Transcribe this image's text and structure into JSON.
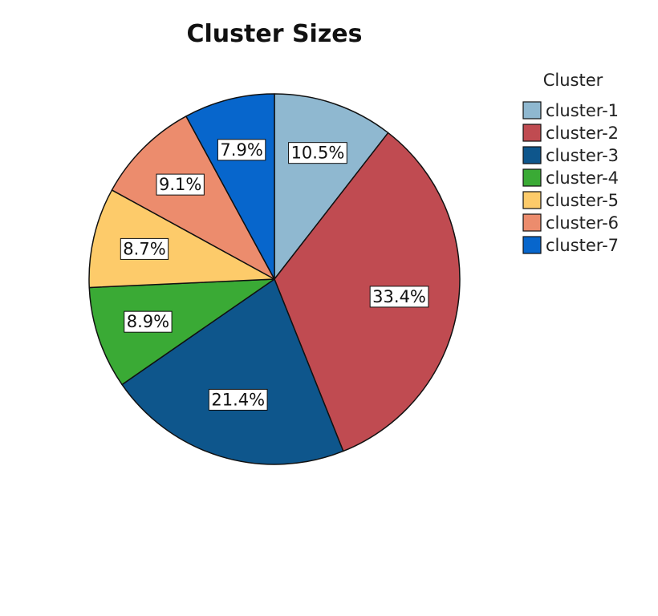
{
  "chart_data": {
    "type": "pie",
    "title": "Cluster Sizes",
    "legend": {
      "title": "Cluster",
      "placement": "right"
    },
    "slices": [
      {
        "name": "cluster-1",
        "value": 10.5,
        "label": "10.5%",
        "color": "#8fb8d0"
      },
      {
        "name": "cluster-2",
        "value": 33.4,
        "label": "33.4%",
        "color": "#c04b51"
      },
      {
        "name": "cluster-3",
        "value": 21.4,
        "label": "21.4%",
        "color": "#0e568c"
      },
      {
        "name": "cluster-4",
        "value": 8.9,
        "label": "8.9%",
        "color": "#3aaa35"
      },
      {
        "name": "cluster-5",
        "value": 8.7,
        "label": "8.7%",
        "color": "#fdcb6a"
      },
      {
        "name": "cluster-6",
        "value": 9.1,
        "label": "9.1%",
        "color": "#ec8c6d"
      },
      {
        "name": "cluster-7",
        "value": 7.9,
        "label": "7.9%",
        "color": "#0766cc"
      }
    ]
  }
}
